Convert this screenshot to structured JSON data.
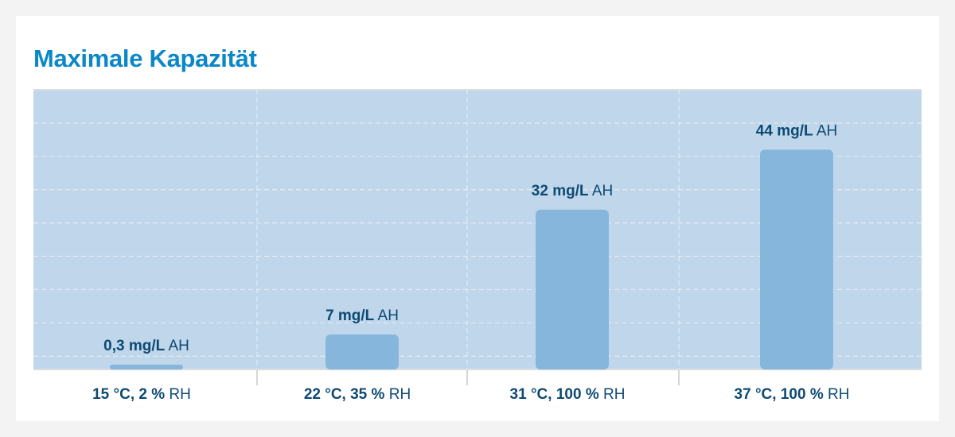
{
  "chart_data": {
    "type": "bar",
    "title": "Maximale Kapazität",
    "categories": [
      {
        "bold": "15 °C, 2 %",
        "rest": " RH"
      },
      {
        "bold": "22 °C, 35 %",
        "rest": " RH"
      },
      {
        "bold": "31 °C, 100 %",
        "rest": " RH"
      },
      {
        "bold": "37 °C, 100 %",
        "rest": " RH"
      }
    ],
    "values": [
      0.3,
      7,
      32,
      44
    ],
    "data_labels": [
      {
        "bold": "0,3 mg/L",
        "rest": " AH"
      },
      {
        "bold": "7 mg/L",
        "rest": " AH"
      },
      {
        "bold": "32 mg/L",
        "rest": " AH"
      },
      {
        "bold": "44 mg/L",
        "rest": " AH"
      }
    ],
    "ylim": [
      0,
      56
    ],
    "grid": true,
    "colors": {
      "bar": "#86b6dc",
      "plot_bg": "#c0d6eb",
      "title": "#0a87c8",
      "text": "#0d4a73"
    }
  }
}
